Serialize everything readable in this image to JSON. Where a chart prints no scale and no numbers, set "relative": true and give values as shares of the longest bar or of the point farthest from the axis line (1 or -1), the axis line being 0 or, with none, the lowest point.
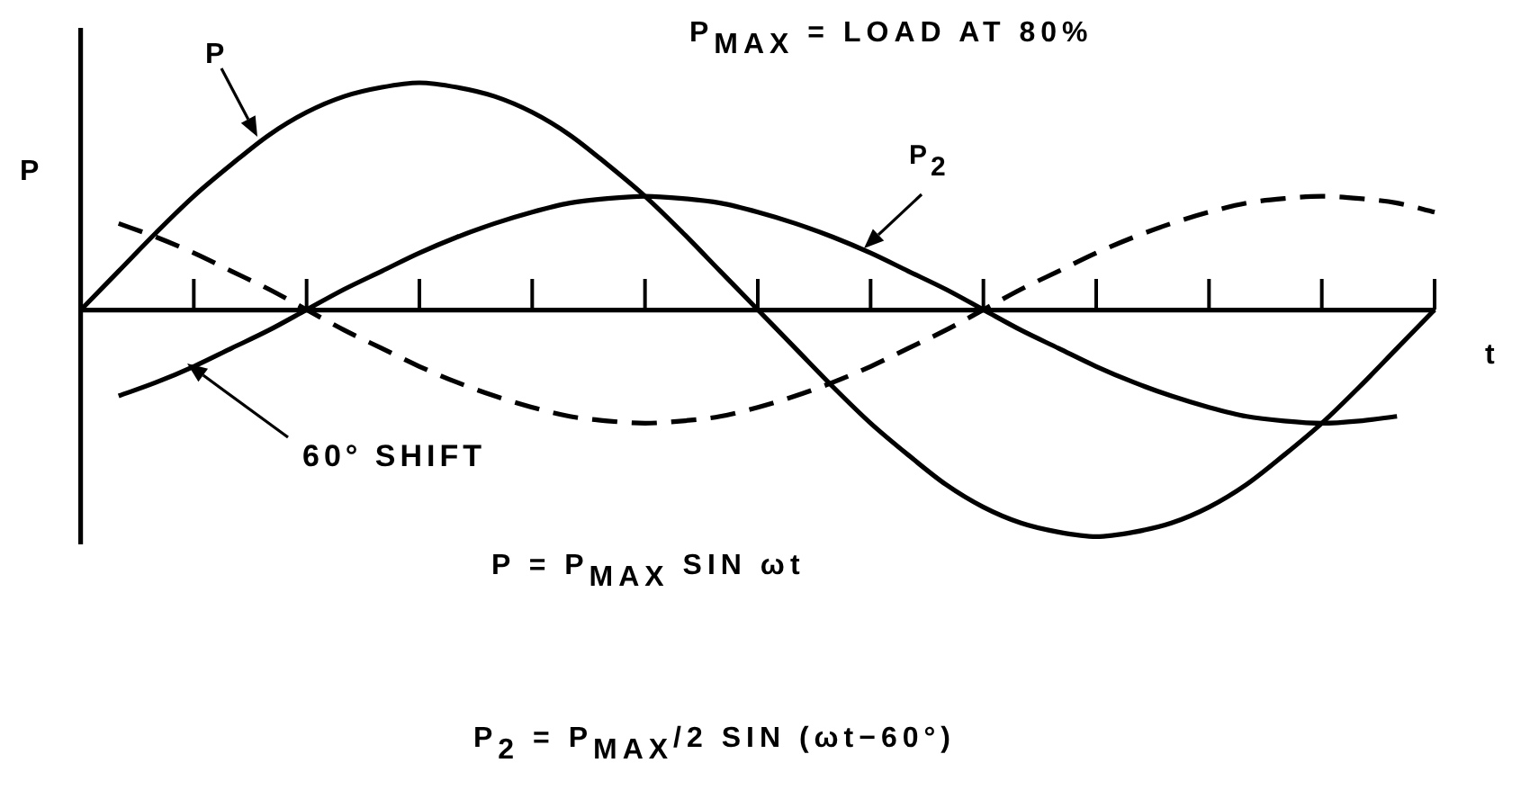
{
  "chart_data": {
    "type": "line",
    "xlabel": "t",
    "ylabel": "P",
    "relative": true,
    "legend": false,
    "grid": false,
    "marker": "none",
    "line_style": "solid",
    "annotations": [
      "P$_{MAX}$ = LOAD AT 80%",
      "60° SHIFT",
      "P = P$_{MAX}$ SIN ωt",
      "P$_{2}$ = P$_{MAX}$/2 SIN (ωt−60°)"
    ],
    "categories": [
      null,
      null,
      null,
      null,
      null,
      null,
      null,
      null,
      null,
      null,
      null,
      null,
      null,
      null,
      null,
      null,
      null,
      null,
      null,
      null,
      null,
      null,
      null,
      null,
      null,
      null,
      null,
      null,
      null,
      null,
      null,
      null,
      null,
      null,
      null,
      null,
      null
    ],
    "series": [
      {
        "name": "P",
        "color": "#000000",
        "values": [
          0,
          0.17,
          0.34,
          0.5,
          0.64,
          0.77,
          0.87,
          0.94,
          0.98,
          1,
          0.98,
          0.94,
          0.87,
          0.77,
          0.64,
          0.5,
          0.34,
          0.17,
          0,
          -0.17,
          -0.34,
          -0.5,
          -0.64,
          -0.77,
          -0.87,
          -0.94,
          -0.98,
          -1,
          -0.98,
          -0.94,
          -0.87,
          -0.77,
          -0.64,
          -0.5,
          -0.34,
          -0.17,
          0
        ]
      },
      {
        "name": "P$_{2}$",
        "color": "#000000",
        "values": [
          null,
          -0.38,
          -0.32,
          -0.25,
          -0.17,
          -0.09,
          0,
          0.09,
          0.17,
          0.25,
          0.32,
          0.38,
          0.43,
          0.47,
          0.49,
          0.5,
          0.49,
          0.47,
          0.43,
          0.38,
          0.32,
          0.25,
          0.17,
          0.09,
          0,
          -0.09,
          -0.17,
          -0.25,
          -0.32,
          -0.38,
          -0.43,
          -0.47,
          -0.49,
          -0.5,
          -0.49,
          -0.47,
          null
        ]
      },
      {
        "color": "#000000",
        "line_style": "dashed",
        "values": [
          null,
          0.38,
          0.32,
          0.25,
          0.17,
          0.09,
          0,
          -0.09,
          -0.17,
          -0.25,
          -0.32,
          -0.38,
          -0.43,
          -0.47,
          -0.49,
          -0.5,
          -0.49,
          -0.47,
          -0.43,
          -0.38,
          -0.32,
          -0.25,
          -0.17,
          -0.09,
          0,
          0.09,
          0.17,
          0.25,
          0.32,
          0.38,
          0.43,
          0.47,
          0.49,
          0.5,
          0.49,
          0.47,
          0.43
        ]
      }
    ]
  }
}
